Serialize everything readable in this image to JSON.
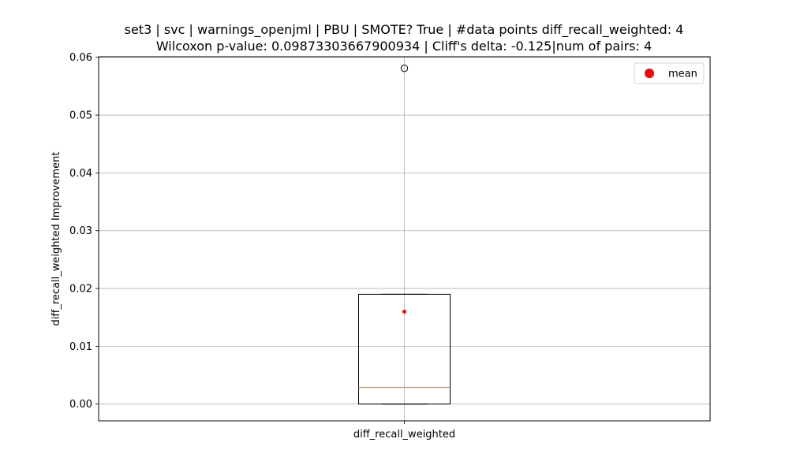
{
  "chart_data": {
    "type": "boxplot",
    "title_line1": "set3 | svc | warnings_openjml | PBU | SMOTE? True | #data points diff_recall_weighted: 4",
    "title_line2": "Wilcoxon p-value: 0.09873303667900934 | Cliff's delta: -0.125|num of pairs: 4",
    "xlabel": "",
    "ylabel": "diff_recall_weighted Improvement",
    "categories": [
      "diff_recall_weighted"
    ],
    "ylim": [
      -0.0029,
      0.0601
    ],
    "yticks": [
      0.0,
      0.01,
      0.02,
      0.03,
      0.04,
      0.05,
      0.06
    ],
    "ytick_labels": [
      "0.00",
      "0.01",
      "0.02",
      "0.03",
      "0.04",
      "0.05",
      "0.06"
    ],
    "grid": true,
    "legend": {
      "position": "top-right",
      "entries": [
        "mean"
      ]
    },
    "boxes": [
      {
        "category": "diff_recall_weighted",
        "whisker_low": 0.0,
        "q1": 0.0,
        "median": 0.0029,
        "q3": 0.019,
        "whisker_high": 0.019,
        "mean": 0.016,
        "outliers": [
          0.0581
        ]
      }
    ],
    "colors": {
      "median": "#ff7f0e",
      "mean": "#ff0000",
      "grid": "#b0b0b0",
      "box": "#000000"
    }
  }
}
